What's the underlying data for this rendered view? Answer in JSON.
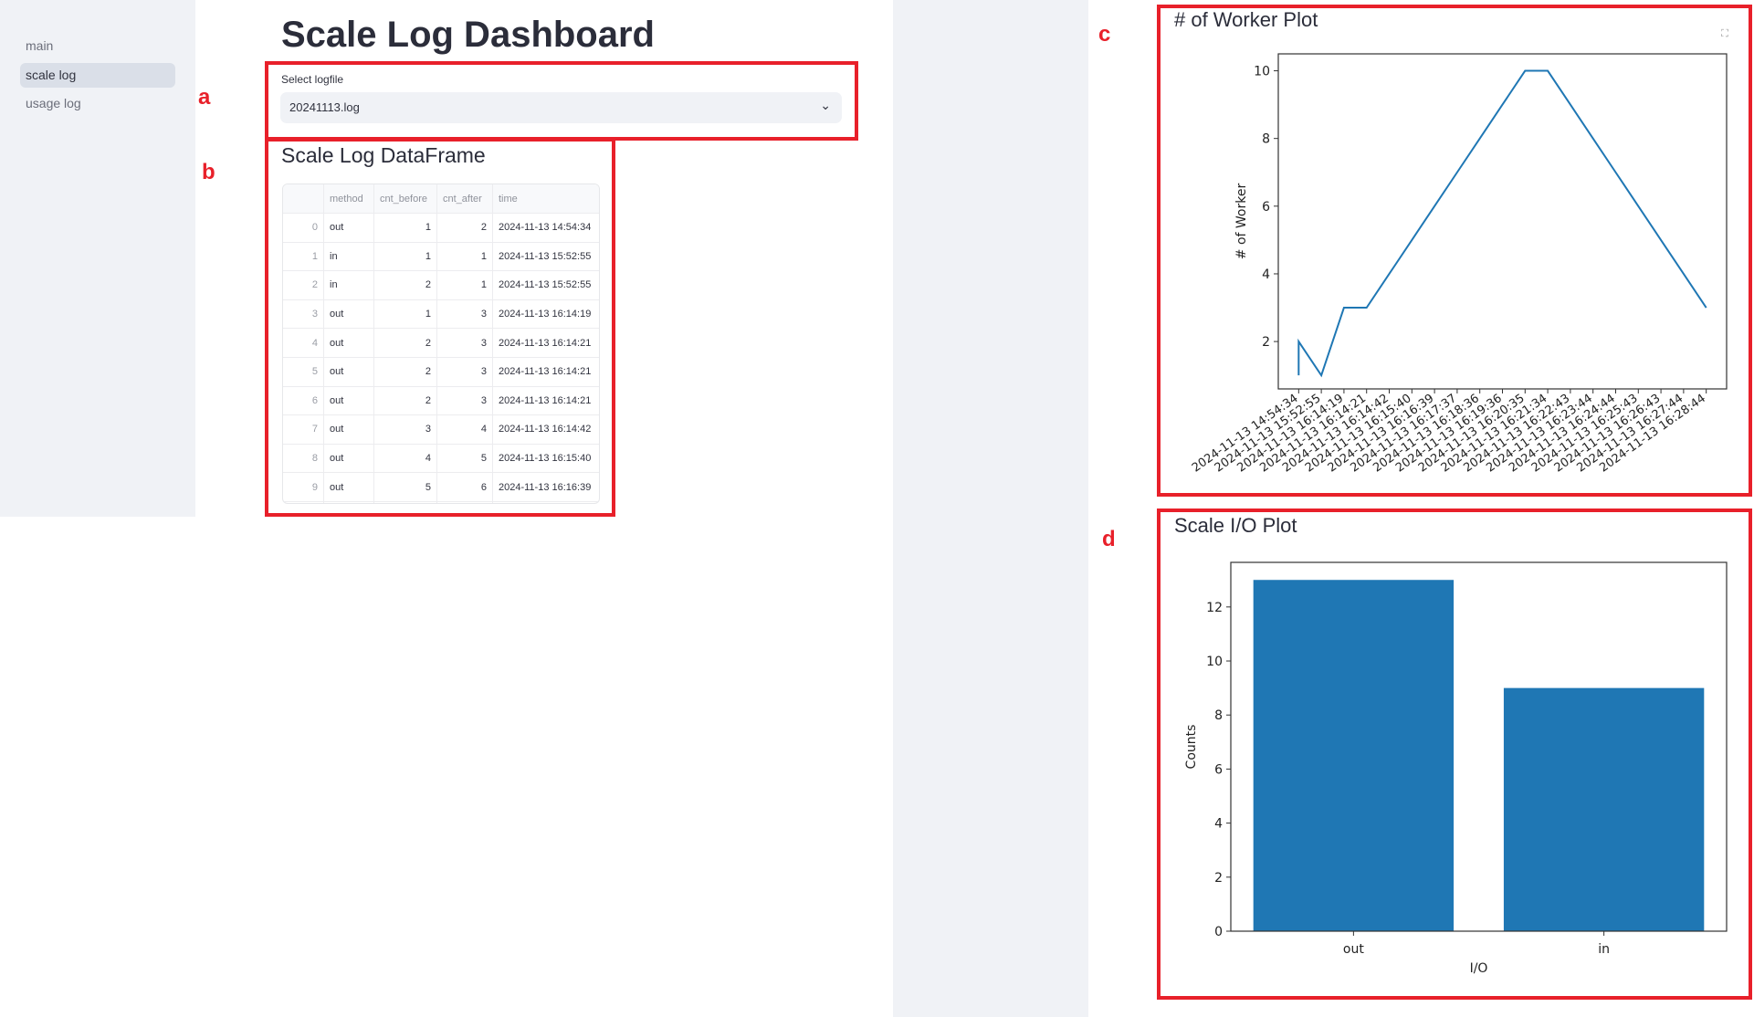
{
  "sidebar": {
    "items": [
      {
        "label": "main",
        "active": false
      },
      {
        "label": "scale log",
        "active": true
      },
      {
        "label": "usage log",
        "active": false
      }
    ]
  },
  "page_title": "Scale Log Dashboard",
  "annotations": [
    "a",
    "b",
    "c",
    "d"
  ],
  "select": {
    "label": "Select logfile",
    "value": "20241113.log",
    "icon": "chevron-down-icon"
  },
  "dataframe": {
    "title": "Scale Log DataFrame",
    "columns": [
      "",
      "method",
      "cnt_before",
      "cnt_after",
      "time"
    ],
    "rows": [
      [
        "0",
        "out",
        "1",
        "2",
        "2024-11-13 14:54:34"
      ],
      [
        "1",
        "in",
        "1",
        "1",
        "2024-11-13 15:52:55"
      ],
      [
        "2",
        "in",
        "2",
        "1",
        "2024-11-13 15:52:55"
      ],
      [
        "3",
        "out",
        "1",
        "3",
        "2024-11-13 16:14:19"
      ],
      [
        "4",
        "out",
        "2",
        "3",
        "2024-11-13 16:14:21"
      ],
      [
        "5",
        "out",
        "2",
        "3",
        "2024-11-13 16:14:21"
      ],
      [
        "6",
        "out",
        "2",
        "3",
        "2024-11-13 16:14:21"
      ],
      [
        "7",
        "out",
        "3",
        "4",
        "2024-11-13 16:14:42"
      ],
      [
        "8",
        "out",
        "4",
        "5",
        "2024-11-13 16:15:40"
      ],
      [
        "9",
        "out",
        "5",
        "6",
        "2024-11-13 16:16:39"
      ]
    ]
  },
  "worker_plot": {
    "title": "# of Worker Plot",
    "expand_icon": "fullscreen-icon"
  },
  "io_plot": {
    "title": "Scale I/O Plot"
  },
  "chart_data": [
    {
      "type": "line",
      "ylabel": "# of Worker",
      "xlabel": "",
      "color": "#1f77b4",
      "categories": [
        "2024-11-13 14:54:34",
        "2024-11-13 15:52:55",
        "2024-11-13 16:14:19",
        "2024-11-13 16:14:21",
        "2024-11-13 16:14:42",
        "2024-11-13 16:15:40",
        "2024-11-13 16:16:39",
        "2024-11-13 16:17:37",
        "2024-11-13 16:18:36",
        "2024-11-13 16:19:36",
        "2024-11-13 16:20:35",
        "2024-11-13 16:21:34",
        "2024-11-13 16:22:43",
        "2024-11-13 16:23:44",
        "2024-11-13 16:24:44",
        "2024-11-13 16:25:43",
        "2024-11-13 16:26:43",
        "2024-11-13 16:27:44",
        "2024-11-13 16:28:44"
      ],
      "points": [
        [
          "2024-11-13 14:54:34",
          1
        ],
        [
          "2024-11-13 14:54:34",
          2
        ],
        [
          "2024-11-13 15:52:55",
          1
        ],
        [
          "2024-11-13 16:14:19",
          3
        ],
        [
          "2024-11-13 16:14:21",
          3
        ],
        [
          "2024-11-13 16:14:42",
          4
        ],
        [
          "2024-11-13 16:15:40",
          5
        ],
        [
          "2024-11-13 16:16:39",
          6
        ],
        [
          "2024-11-13 16:17:37",
          7
        ],
        [
          "2024-11-13 16:18:36",
          8
        ],
        [
          "2024-11-13 16:19:36",
          9
        ],
        [
          "2024-11-13 16:20:35",
          10
        ],
        [
          "2024-11-13 16:21:34",
          10
        ],
        [
          "2024-11-13 16:22:43",
          9
        ],
        [
          "2024-11-13 16:23:44",
          8
        ],
        [
          "2024-11-13 16:24:44",
          7
        ],
        [
          "2024-11-13 16:25:43",
          6
        ],
        [
          "2024-11-13 16:26:43",
          5
        ],
        [
          "2024-11-13 16:27:44",
          4
        ],
        [
          "2024-11-13 16:28:44",
          3
        ]
      ],
      "yticks": [
        2,
        4,
        6,
        8,
        10
      ],
      "ylim": [
        0.6,
        10.5
      ],
      "grid": false
    },
    {
      "type": "bar",
      "xlabel": "I/O",
      "ylabel": "Counts",
      "color": "#1f77b4",
      "categories": [
        "out",
        "in"
      ],
      "values": [
        13,
        9
      ],
      "yticks": [
        0,
        2,
        4,
        6,
        8,
        10,
        12
      ],
      "ylim": [
        0,
        13.65
      ],
      "grid": false
    }
  ]
}
